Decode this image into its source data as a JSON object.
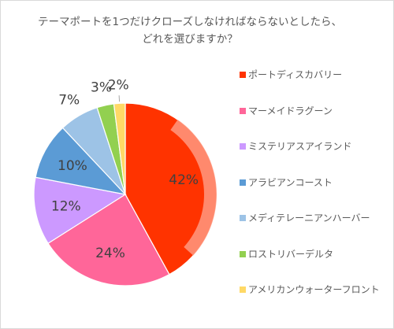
{
  "chart_data": {
    "type": "pie",
    "title": "テーマポートを1つだけクローズしなければならないとしたら、どれを選びますか？",
    "title_lines": [
      "テーマポートを1つだけクローズしなければならないとしたら、",
      "どれを選びますか？"
    ],
    "legend_position": "right",
    "slices": [
      {
        "label": "ポートディスカバリー",
        "value": 42,
        "display": "42%",
        "color": "#ff3300"
      },
      {
        "label": "マーメイドラグーン",
        "value": 24,
        "display": "24%",
        "color": "#ff6699"
      },
      {
        "label": "ミステリアスアイランド",
        "value": 12,
        "display": "12%",
        "color": "#cc99ff"
      },
      {
        "label": "アラビアンコースト",
        "value": 10,
        "display": "10%",
        "color": "#5b9bd5"
      },
      {
        "label": "メディテレーニアンハーバー",
        "value": 7,
        "display": "7%",
        "color": "#9dc3e6"
      },
      {
        "label": "ロストリバーデルタ",
        "value": 3,
        "display": "3%",
        "color": "#92d050"
      },
      {
        "label": "アメリカンウォーターフロント",
        "value": 2,
        "display": "2%",
        "color": "#ffd966"
      }
    ]
  }
}
